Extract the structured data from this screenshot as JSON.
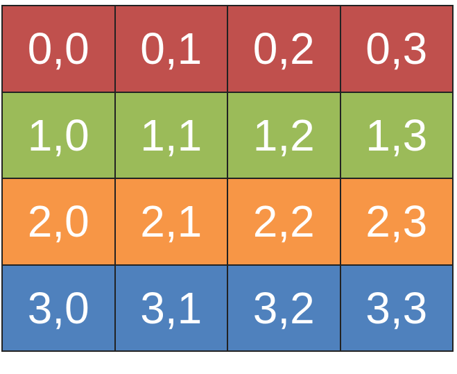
{
  "rows": [
    {
      "color": "#c0504d",
      "cells": [
        "0,0",
        "0,1",
        "0,2",
        "0,3"
      ]
    },
    {
      "color": "#9bbb59",
      "cells": [
        "1,0",
        "1,1",
        "1,2",
        "1,3"
      ]
    },
    {
      "color": "#f79646",
      "cells": [
        "2,0",
        "2,1",
        "2,2",
        "2,3"
      ]
    },
    {
      "color": "#4f81bd",
      "cells": [
        "3,0",
        "3,1",
        "3,2",
        "3,3"
      ]
    }
  ]
}
